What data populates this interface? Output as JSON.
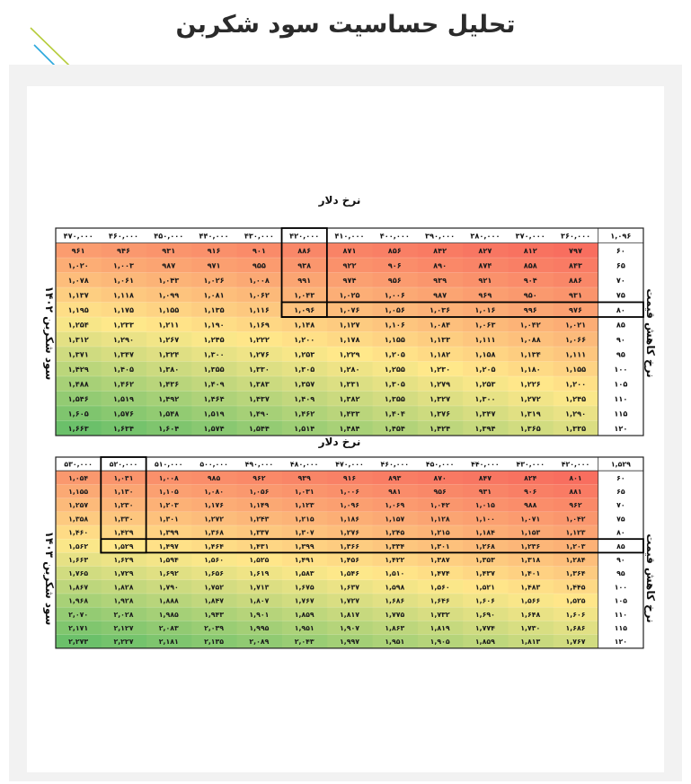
{
  "title": "تحلیل حساسیت سود شکربن",
  "colors": {
    "low": "#f86e5f",
    "mid": "#ffe88a",
    "high": "#6bc06a"
  },
  "chart_data": [
    {
      "type": "heatmap",
      "xlabel": "نرخ دلار",
      "ylabel_right": "نرخ کاهش قیمت",
      "ylabel_left": "سود شکربن ۱۴۰۲",
      "corner": "۱,۰۹۶",
      "x": [
        "۳۶۰,۰۰۰",
        "۳۷۰,۰۰۰",
        "۳۸۰,۰۰۰",
        "۳۹۰,۰۰۰",
        "۴۰۰,۰۰۰",
        "۴۱۰,۰۰۰",
        "۴۲۰,۰۰۰",
        "۴۳۰,۰۰۰",
        "۴۴۰,۰۰۰",
        "۴۵۰,۰۰۰",
        "۴۶۰,۰۰۰",
        "۴۷۰,۰۰۰"
      ],
      "y": [
        "۶۰",
        "۶۵",
        "۷۰",
        "۷۵",
        "۸۰",
        "۸۵",
        "۹۰",
        "۹۵",
        "۱۰۰",
        "۱۰۵",
        "۱۱۰",
        "۱۱۵",
        "۱۲۰"
      ],
      "values": [
        [
          797,
          812,
          827,
          842,
          856,
          871,
          886,
          901,
          916,
          931,
          946,
          961
        ],
        [
          843,
          858,
          874,
          890,
          906,
          922,
          938,
          955,
          971,
          987,
          1003,
          1020
        ],
        [
          886,
          904,
          921,
          939,
          956,
          974,
          991,
          1008,
          1026,
          1043,
          1061,
          1078
        ],
        [
          931,
          950,
          969,
          987,
          1006,
          1025,
          1043,
          1062,
          1081,
          1099,
          1118,
          1137
        ],
        [
          976,
          996,
          1016,
          1036,
          1056,
          1076,
          1096,
          1116,
          1135,
          1155,
          1175,
          1195
        ],
        [
          1021,
          1042,
          1063,
          1084,
          1106,
          1127,
          1148,
          1169,
          1190,
          1211,
          1233,
          1254
        ],
        [
          1066,
          1088,
          1111,
          1133,
          1155,
          1178,
          1200,
          1222,
          1245,
          1267,
          1290,
          1312
        ],
        [
          1111,
          1134,
          1158,
          1182,
          1205,
          1229,
          1253,
          1276,
          1300,
          1324,
          1347,
          1371
        ],
        [
          1155,
          1180,
          1205,
          1230,
          1255,
          1280,
          1305,
          1330,
          1355,
          1380,
          1405,
          1429
        ],
        [
          1200,
          1226,
          1253,
          1279,
          1305,
          1331,
          1357,
          1383,
          1409,
          1436,
          1462,
          1488
        ],
        [
          1245,
          1272,
          1300,
          1327,
          1355,
          1382,
          1409,
          1437,
          1464,
          1492,
          1519,
          1546
        ],
        [
          1290,
          1319,
          1347,
          1376,
          1404,
          1433,
          1462,
          1490,
          1519,
          1548,
          1576,
          1605
        ],
        [
          1335,
          1365,
          1394,
          1424,
          1454,
          1484,
          1514,
          1544,
          1574,
          1604,
          1634,
          1663
        ]
      ],
      "highlight_x": "۴۲۰,۰۰۰",
      "highlight_y": "۸۰"
    },
    {
      "type": "heatmap",
      "xlabel": "نرخ دلار",
      "ylabel_right": "نرخ کاهش قیمت",
      "ylabel_left": "سود شکربن ۱۴۰۳",
      "corner": "۱,۵۲۹",
      "x": [
        "۴۲۰,۰۰۰",
        "۴۳۰,۰۰۰",
        "۴۴۰,۰۰۰",
        "۴۵۰,۰۰۰",
        "۴۶۰,۰۰۰",
        "۴۷۰,۰۰۰",
        "۴۸۰,۰۰۰",
        "۴۹۰,۰۰۰",
        "۵۰۰,۰۰۰",
        "۵۱۰,۰۰۰",
        "۵۲۰,۰۰۰",
        "۵۳۰,۰۰۰"
      ],
      "y": [
        "۶۰",
        "۶۵",
        "۷۰",
        "۷۵",
        "۸۰",
        "۸۵",
        "۹۰",
        "۹۵",
        "۱۰۰",
        "۱۰۵",
        "۱۱۰",
        "۱۱۵",
        "۱۲۰"
      ],
      "values": [
        [
          801,
          824,
          847,
          870,
          893,
          916,
          939,
          962,
          985,
          1008,
          1031,
          1054
        ],
        [
          881,
          906,
          931,
          956,
          981,
          1006,
          1031,
          1056,
          1080,
          1105,
          1130,
          1155
        ],
        [
          962,
          988,
          1015,
          1042,
          1069,
          1096,
          1123,
          1149,
          1176,
          1203,
          1230,
          1257
        ],
        [
          1042,
          1071,
          1100,
          1128,
          1157,
          1186,
          1215,
          1243,
          1272,
          1301,
          1330,
          1358
        ],
        [
          1123,
          1153,
          1184,
          1215,
          1245,
          1276,
          1307,
          1337,
          1368,
          1399,
          1429,
          1460
        ],
        [
          1203,
          1236,
          1268,
          1301,
          1334,
          1366,
          1399,
          1431,
          1464,
          1497,
          1529,
          1562
        ],
        [
          1284,
          1318,
          1353,
          1387,
          1422,
          1456,
          1491,
          1525,
          1560,
          1594,
          1629,
          1663
        ],
        [
          1364,
          1401,
          1437,
          1474,
          1510,
          1546,
          1583,
          1619,
          1656,
          1692,
          1729,
          1765
        ],
        [
          1445,
          1483,
          1521,
          1560,
          1598,
          1637,
          1675,
          1713,
          1752,
          1790,
          1828,
          1867
        ],
        [
          1525,
          1566,
          1606,
          1646,
          1686,
          1727,
          1767,
          1807,
          1847,
          1888,
          1928,
          1968
        ],
        [
          1606,
          1648,
          1690,
          1732,
          1775,
          1817,
          1859,
          1901,
          1943,
          1985,
          2028,
          2070
        ],
        [
          1686,
          1730,
          1774,
          1819,
          1863,
          1907,
          1951,
          1995,
          2039,
          2083,
          2127,
          2171
        ],
        [
          1767,
          1813,
          1859,
          1905,
          1951,
          1997,
          2043,
          2089,
          2135,
          2181,
          2227,
          2273
        ]
      ],
      "highlight_x": "۵۲۰,۰۰۰",
      "highlight_y": "۸۵"
    }
  ]
}
